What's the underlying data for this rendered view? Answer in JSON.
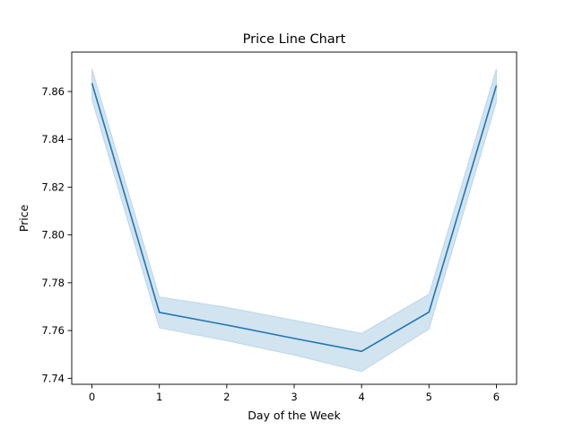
{
  "chart_data": {
    "type": "line",
    "title": "Price Line Chart",
    "xlabel": "Day of the Week",
    "ylabel": "Price",
    "x": [
      0,
      1,
      2,
      3,
      4,
      5,
      6
    ],
    "series": [
      {
        "values": [
          7.8635,
          7.7676,
          7.7623,
          7.7567,
          7.7513,
          7.7677,
          7.8625
        ],
        "ci_lower": [
          7.8565,
          7.7611,
          7.7557,
          7.7497,
          7.7428,
          7.7606,
          7.8555
        ],
        "ci_upper": [
          7.8695,
          7.7741,
          7.7697,
          7.7643,
          7.7588,
          7.7752,
          7.8695
        ],
        "color": "#1f77b4",
        "band_color": "#1f77b4"
      }
    ],
    "xlim": [
      -0.3,
      6.3
    ],
    "ylim": [
      7.7375,
      7.8765
    ],
    "xticks": [
      "0",
      "1",
      "2",
      "3",
      "4",
      "5",
      "6"
    ],
    "yticks": [
      "7.74",
      "7.76",
      "7.78",
      "7.80",
      "7.82",
      "7.84",
      "7.86"
    ],
    "grid": false,
    "legend": "none"
  }
}
